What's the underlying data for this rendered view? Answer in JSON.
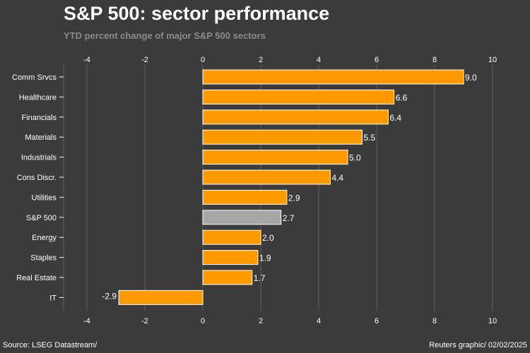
{
  "header": {
    "title": "S&P 500: sector performance",
    "subtitle": "YTD percent change of major S&P 500 sectors"
  },
  "footer": {
    "source": "Source: LSEG Datastream/",
    "credit": "Reuters graphic/ 02/02/2025"
  },
  "colors": {
    "background": "#3b3b3b",
    "bar": "#ff9900",
    "highlight_bar": "#a6a6a6",
    "bar_stroke": "#ffffff",
    "gridline": "#5e5e5e",
    "text": "#ffffff"
  },
  "chart_data": {
    "type": "bar",
    "orientation": "horizontal",
    "title": "S&P 500: sector performance",
    "subtitle": "YTD percent change of major S&P 500 sectors",
    "xlabel": "",
    "ylabel": "",
    "xlim": [
      -4,
      10
    ],
    "ticks": [
      -4,
      -2,
      0,
      2,
      4,
      6,
      8,
      10
    ],
    "grid": true,
    "categories": [
      "Comm Srvcs",
      "Healthcare",
      "Financials",
      "Materials",
      "Industrials",
      "Cons Discr.",
      "Utilities",
      "S&P 500",
      "Energy",
      "Staples",
      "Real Estate",
      "IT"
    ],
    "values": [
      9.0,
      6.6,
      6.4,
      5.5,
      5.0,
      4.4,
      2.9,
      2.7,
      2.0,
      1.9,
      1.7,
      -2.9
    ],
    "highlight": "S&P 500"
  }
}
